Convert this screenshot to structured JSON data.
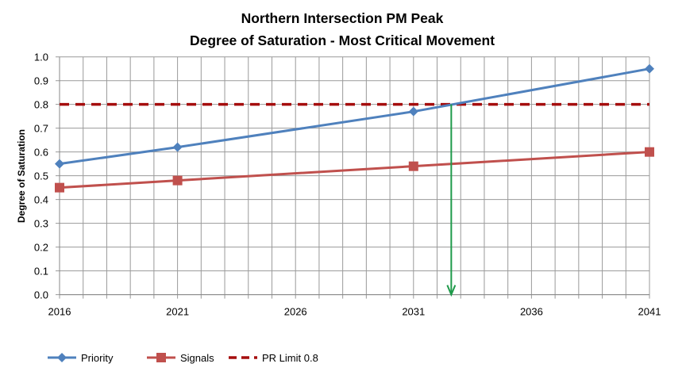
{
  "chart_data": {
    "type": "line",
    "title": "Northern Intersection PM Peak",
    "subtitle": "Degree of Saturation - Most Critical Movement",
    "xlabel": "",
    "ylabel": "Degree of Saturation",
    "xlim": [
      2016,
      2041
    ],
    "ylim": [
      0,
      1.0
    ],
    "x_ticks": [
      2016,
      2021,
      2026,
      2031,
      2036,
      2041
    ],
    "x_tick_labels": [
      "2016",
      "2021",
      "2026",
      "2031",
      "2036",
      "2041"
    ],
    "y_ticks": [
      0,
      0.1,
      0.2,
      0.3,
      0.4,
      0.5,
      0.6,
      0.7,
      0.8,
      0.9,
      1.0
    ],
    "y_tick_labels": [
      "0.0",
      "0.1",
      "0.2",
      "0.3",
      "0.4",
      "0.5",
      "0.6",
      "0.7",
      "0.8",
      "0.9",
      "1.0"
    ],
    "grid": true,
    "x": [
      2016,
      2021,
      2031,
      2041
    ],
    "series": [
      {
        "name": "Priority",
        "values": [
          0.55,
          0.62,
          0.77,
          0.95
        ],
        "color": "#4f81bd",
        "marker": "diamond"
      },
      {
        "name": "Signals",
        "values": [
          0.45,
          0.48,
          0.54,
          0.6
        ],
        "color": "#c0504d",
        "marker": "square"
      },
      {
        "name": "PR Limit 0.8",
        "constant": 0.8,
        "color": "#a50d0d",
        "style": "dashed"
      }
    ],
    "annotation": {
      "type": "arrow",
      "x": 2032.6,
      "from_y": 0.8,
      "to_y": 0,
      "color": "#1e9a4a"
    },
    "legend_placement": "bottom-left"
  }
}
